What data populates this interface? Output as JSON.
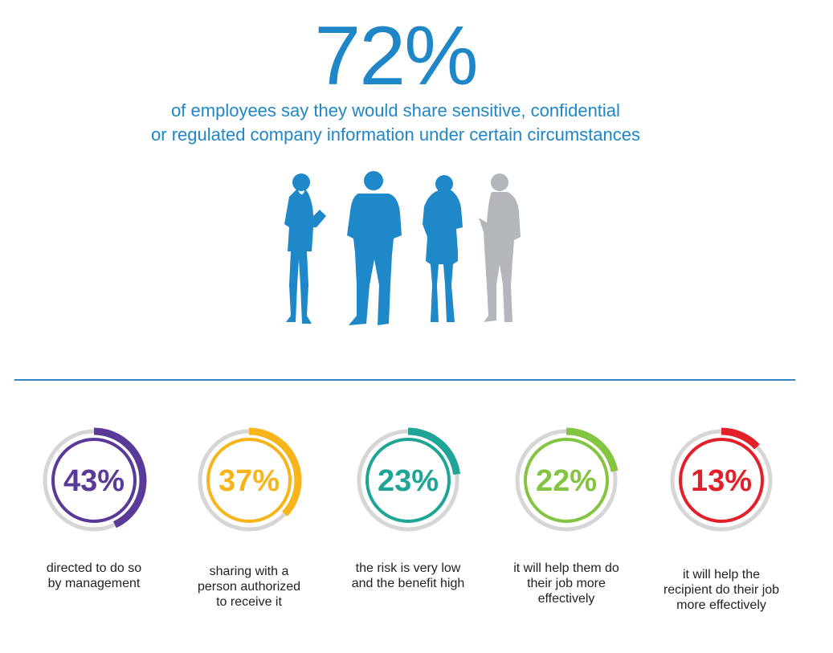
{
  "headline": {
    "value": "72%",
    "subtitle_line1": "of employees say they would share sensitive, confidential",
    "subtitle_line2": "or regulated company information under certain circumstances"
  },
  "colors": {
    "primary": "#1f86c8",
    "highlight_figure": "#1e88c9",
    "muted_figure": "#b3b7bb",
    "ring_track": "#d6d6d6"
  },
  "figures": {
    "total": 4,
    "highlighted": 3
  },
  "chart_data": {
    "type": "donut",
    "title": "",
    "items": [
      {
        "value": 43,
        "label": "43%",
        "caption": [
          "directed to do so",
          "by management"
        ],
        "color": "#5a3a99"
      },
      {
        "value": 37,
        "label": "37%",
        "caption": [
          "sharing with a",
          "person authorized",
          "to receive it"
        ],
        "color": "#f7b51b"
      },
      {
        "value": 23,
        "label": "23%",
        "caption": [
          "the risk is very low",
          "and the benefit high"
        ],
        "color": "#1ea597"
      },
      {
        "value": 22,
        "label": "22%",
        "caption": [
          "it will help them do",
          "their job more",
          "effectively"
        ],
        "color": "#84c443"
      },
      {
        "value": 13,
        "label": "13%",
        "caption": [
          "it will help the",
          "recipient do their job",
          "more effectively"
        ],
        "color": "#e3202a"
      }
    ]
  }
}
